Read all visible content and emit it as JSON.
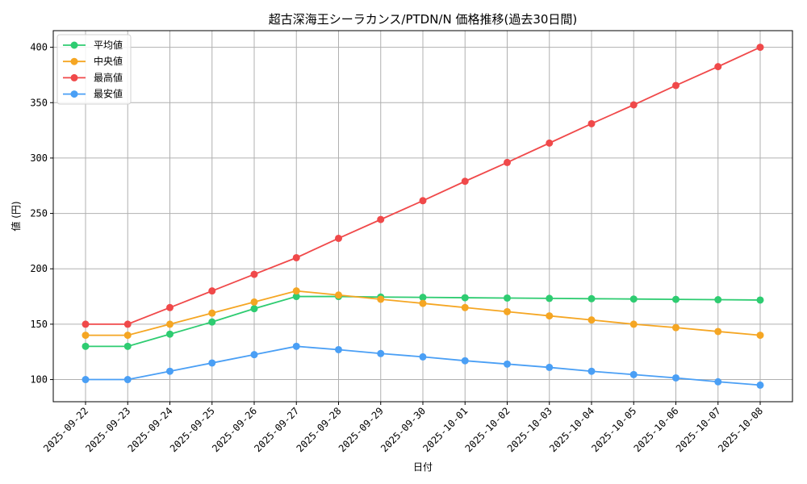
{
  "chart_data": {
    "type": "line",
    "title": "超古深海王シーラカンス/PTDN/N 価格推移(過去30日間)",
    "xlabel": "日付",
    "ylabel": "値 (円)",
    "grid": true,
    "legend_position": "top-left",
    "ylim": [
      80,
      415
    ],
    "yticks": [
      100,
      150,
      200,
      250,
      300,
      350,
      400
    ],
    "categories": [
      "2025-09-22",
      "2025-09-23",
      "2025-09-24",
      "2025-09-25",
      "2025-09-26",
      "2025-09-27",
      "2025-09-28",
      "2025-09-29",
      "2025-09-30",
      "2025-10-01",
      "2025-10-02",
      "2025-10-03",
      "2025-10-04",
      "2025-10-05",
      "2025-10-06",
      "2025-10-07",
      "2025-10-08"
    ],
    "series": [
      {
        "name": "平均値",
        "color": "#2ecc71",
        "values": [
          130,
          130,
          141,
          152,
          164,
          175,
          175,
          174.5,
          174.2,
          173.9,
          173.6,
          173.3,
          173,
          172.7,
          172.4,
          172.1,
          171.8
        ]
      },
      {
        "name": "中央値",
        "color": "#f5a623",
        "values": [
          140,
          140,
          150,
          160,
          170,
          180,
          176.3,
          172.5,
          168.8,
          165,
          161.3,
          157.5,
          153.8,
          150,
          146.9,
          143.4,
          140
        ]
      },
      {
        "name": "最高値",
        "color": "#f0494a",
        "values": [
          150,
          150,
          165,
          180,
          195,
          210,
          227.5,
          244.5,
          261.5,
          279,
          296,
          313.5,
          331,
          348,
          365.5,
          382.5,
          400
        ]
      },
      {
        "name": "最安値",
        "color": "#4a9ff5",
        "values": [
          100,
          100,
          107.5,
          115,
          122.5,
          130,
          127,
          123.5,
          120.5,
          117,
          114,
          111,
          107.5,
          104.5,
          101.5,
          98,
          95
        ]
      }
    ]
  }
}
